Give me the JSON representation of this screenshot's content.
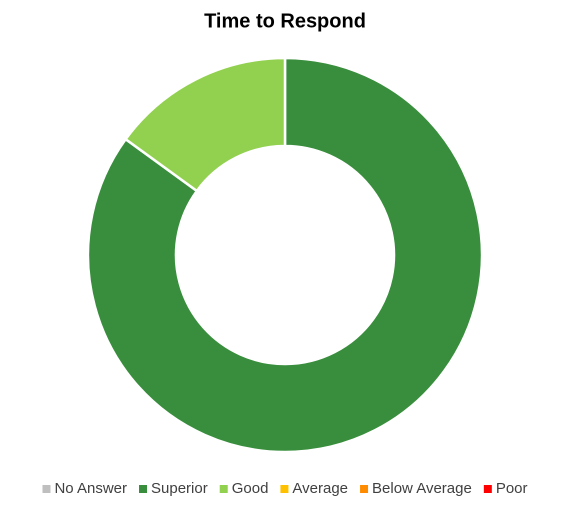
{
  "chart_data": {
    "type": "donut",
    "title": "Time to Respond",
    "categories": [
      "No Answer",
      "Superior",
      "Good",
      "Average",
      "Below Average",
      "Poor"
    ],
    "values": [
      0,
      85,
      15,
      0,
      0,
      0
    ],
    "colors": [
      "#bfbfbf",
      "#388e3c",
      "#92d050",
      "#ffc000",
      "#ff8c00",
      "#ff0000"
    ],
    "legend": "bottom"
  }
}
